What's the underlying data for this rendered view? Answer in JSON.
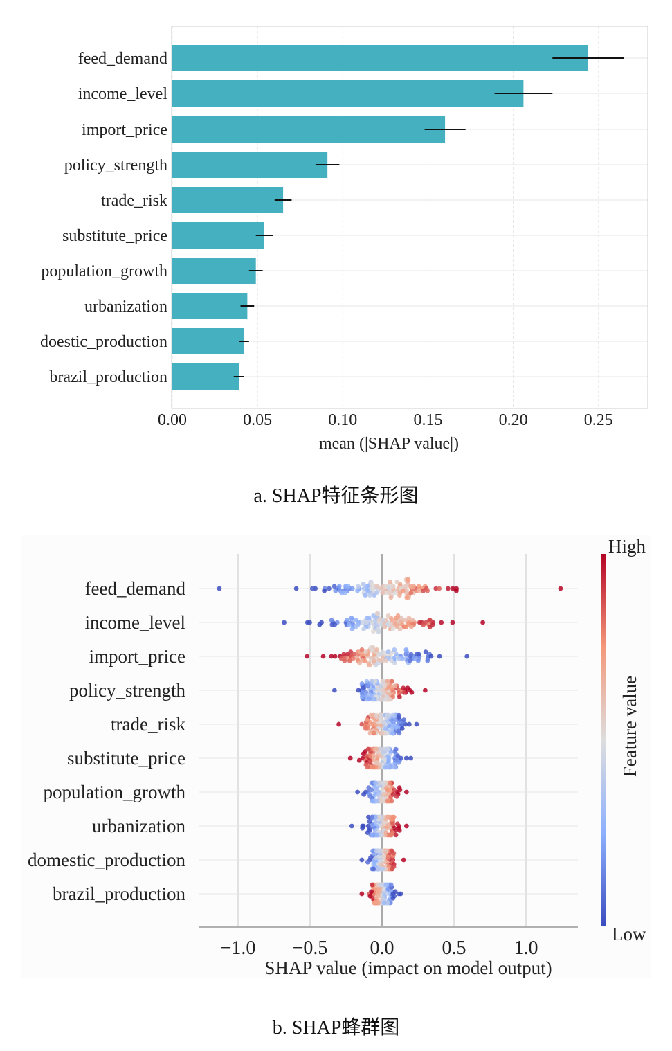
{
  "captions": {
    "a": "a. SHAP特征条形图",
    "b": "b. SHAP蜂群图"
  },
  "chart_data": [
    {
      "type": "bar",
      "orientation": "horizontal",
      "categories": [
        "feed_demand",
        "income_level",
        "import_price",
        "policy_strength",
        "trade_risk",
        "substitute_price",
        "population_growth",
        "urbanization",
        "doestic_production",
        "brazil_production"
      ],
      "values": [
        0.244,
        0.206,
        0.16,
        0.091,
        0.065,
        0.054,
        0.049,
        0.044,
        0.042,
        0.039
      ],
      "errors": [
        0.021,
        0.017,
        0.012,
        0.007,
        0.005,
        0.005,
        0.004,
        0.004,
        0.003,
        0.003
      ],
      "xlabel": "mean (|SHAP value|)",
      "xticks": [
        "0.00",
        "0.05",
        "0.10",
        "0.15",
        "0.20",
        "0.25"
      ],
      "xlim": [
        0,
        0.28
      ],
      "bar_color": "#45b0bf",
      "grid": true
    },
    {
      "type": "scatter",
      "subtype": "beeswarm",
      "features": [
        "feed_demand",
        "income_level",
        "import_price",
        "policy_strength",
        "trade_risk",
        "substitute_price",
        "population_growth",
        "urbanization",
        "domestic_production",
        "brazil_production"
      ],
      "spread": [
        0.5,
        0.44,
        0.36,
        0.2,
        0.17,
        0.15,
        0.12,
        0.12,
        0.11,
        0.1
      ],
      "correlation": [
        1,
        1,
        -1,
        1,
        -1,
        -1,
        1,
        1,
        1,
        -1
      ],
      "extremes": [
        [
          -1.13,
          1.24
        ],
        [
          -0.68,
          0.7
        ],
        [
          -0.52,
          0.59
        ],
        [
          -0.33,
          0.3
        ],
        [
          -0.3,
          0.24
        ],
        [
          -0.22,
          0.2
        ],
        [
          -0.17,
          0.17
        ],
        [
          -0.21,
          0.17
        ],
        [
          -0.14,
          0.15
        ],
        [
          -0.14,
          0.13
        ]
      ],
      "xlabel": "SHAP value (impact on model output)",
      "xticks": [
        "−1.0",
        "−0.5",
        "0.0",
        "0.5",
        "1.0"
      ],
      "xlim": [
        -1.3,
        1.37
      ],
      "colorbar": {
        "label": "Feature value",
        "high": "High",
        "low": "Low",
        "colors": [
          "#3b4cc0",
          "#dddddd",
          "#b40426"
        ]
      }
    }
  ]
}
